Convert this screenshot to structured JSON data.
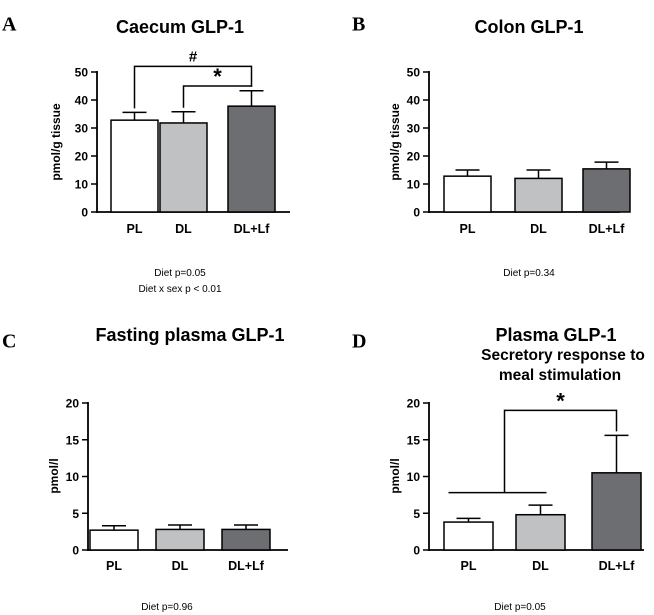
{
  "chart_data": [
    {
      "panel": "A",
      "type": "bar",
      "title": "Caecum GLP-1",
      "subtitle": "",
      "ylabel": "pmol/g tissue",
      "xlabel": "",
      "ylim": [
        0,
        50
      ],
      "yticks": [
        "0",
        "10",
        "20",
        "30",
        "40",
        "50"
      ],
      "categories": [
        "PL",
        "DL",
        "DL+Lf"
      ],
      "values": [
        32.8,
        31.8,
        37.8
      ],
      "errors": [
        2.8,
        4.0,
        5.5
      ],
      "fills": [
        "#ffffff",
        "#c0c1c3",
        "#6c6e72"
      ],
      "annotations": [
        {
          "label": "#",
          "kind": "bracket",
          "from": "PL",
          "to": "DL+Lf",
          "level": 52
        },
        {
          "label": "*",
          "kind": "bracket",
          "from": "DL",
          "to": "DL+Lf",
          "level": 45
        }
      ],
      "notes": [
        "Diet p=0.05",
        "Diet x sex p < 0.01"
      ]
    },
    {
      "panel": "B",
      "type": "bar",
      "title": "Colon GLP-1",
      "subtitle": "",
      "ylabel": "pmol/g tissue",
      "xlabel": "",
      "ylim": [
        0,
        50
      ],
      "yticks": [
        "0",
        "10",
        "20",
        "30",
        "40",
        "50"
      ],
      "categories": [
        "PL",
        "DL",
        "DL+Lf"
      ],
      "values": [
        12.8,
        12.0,
        15.4
      ],
      "errors": [
        2.2,
        3.0,
        2.4
      ],
      "fills": [
        "#ffffff",
        "#c0c1c3",
        "#6c6e72"
      ],
      "annotations": [],
      "notes": [
        "Diet p=0.34"
      ]
    },
    {
      "panel": "C",
      "type": "bar",
      "title": "Fasting plasma GLP-1",
      "subtitle": "",
      "ylabel": "pmol/l",
      "xlabel": "",
      "ylim": [
        0,
        20
      ],
      "yticks": [
        "0",
        "5",
        "10",
        "15",
        "20"
      ],
      "categories": [
        "PL",
        "DL",
        "DL+Lf"
      ],
      "values": [
        2.7,
        2.8,
        2.8
      ],
      "errors": [
        0.6,
        0.6,
        0.6
      ],
      "fills": [
        "#ffffff",
        "#c0c1c3",
        "#6c6e72"
      ],
      "annotations": [],
      "notes": [
        "Diet p=0.96"
      ]
    },
    {
      "panel": "D",
      "type": "bar",
      "title": "Plasma GLP-1",
      "subtitle": "Secretory response to meal stimulation",
      "subtitle_lines": [
        "Secretory response to",
        "meal stimulation"
      ],
      "ylabel": "pmol/l",
      "xlabel": "",
      "ylim": [
        0,
        20
      ],
      "yticks": [
        "0",
        "5",
        "10",
        "15",
        "20"
      ],
      "categories": [
        "PL",
        "DL",
        "DL+Lf"
      ],
      "values": [
        3.8,
        4.8,
        10.5
      ],
      "errors": [
        0.5,
        1.3,
        5.1
      ],
      "fills": [
        "#ffffff",
        "#c0c1c3",
        "#6c6e72"
      ],
      "annotations": [
        {
          "label": "*",
          "kind": "group-bracket",
          "group": [
            "PL",
            "DL"
          ],
          "to": "DL+Lf",
          "group_level": 7.8,
          "level": 19.0
        }
      ],
      "notes": [
        "Diet p=0.05"
      ]
    }
  ]
}
